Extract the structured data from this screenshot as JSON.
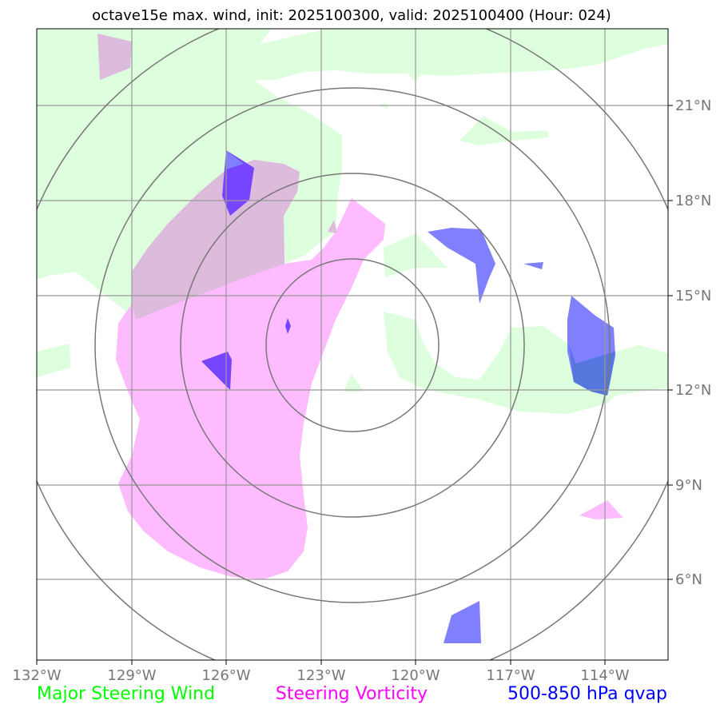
{
  "title": "octave15e max. wind, init: 2025100300, valid: 2025100400 (Hour: 024)",
  "axes": {
    "lon_ticks": [
      "132°W",
      "129°W",
      "126°W",
      "123°W",
      "120°W",
      "117°W",
      "114°W"
    ],
    "lat_ticks": [
      "21°N",
      "18°N",
      "15°N",
      "12°N",
      "9°N",
      "6°N"
    ],
    "lon_range": [
      -132,
      -112
    ],
    "lat_range": [
      3.5,
      23.5
    ]
  },
  "legend": {
    "steering_wind": {
      "label": "Major Steering Wind",
      "color": "#00ff00"
    },
    "steering_vorticity": {
      "label": "Steering Vorticity",
      "color": "#ff00ff"
    },
    "qvap": {
      "label": "500-850 hPa qvap",
      "color": "#0000ff"
    }
  },
  "colors": {
    "wind_fill": "#ddffdd",
    "vorticity_fill": "#ffbbff",
    "overlap_fill": "#ddbbdd",
    "qvap_fill": "#8080ff",
    "qvap_on_vorticity": "#7744ff",
    "qvap_on_wind": "#5577dd",
    "grid": "#999999",
    "range_rings": "#777777"
  },
  "range_rings": {
    "center": {
      "lon": "-122.1",
      "lat": "13.9"
    }
  }
}
